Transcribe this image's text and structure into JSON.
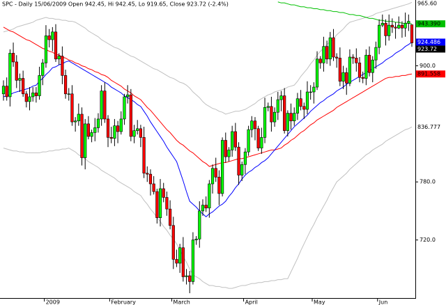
{
  "chart_data": {
    "type": "candlestick",
    "title": "SPC - Daily 15/06/2009 Open 942.45, Hi 942.45, Lo 919.65, Close 923.72 (-2.4%)",
    "categories": [
      null,
      null,
      null,
      null,
      null,
      null,
      null,
      null,
      null,
      null,
      null,
      null,
      null,
      "2009",
      null,
      null,
      null,
      null,
      null,
      null,
      null,
      null,
      null,
      null,
      null,
      null,
      null,
      null,
      null,
      null,
      null,
      null,
      null,
      "February",
      null,
      null,
      null,
      null,
      null,
      null,
      null,
      null,
      null,
      null,
      null,
      null,
      null,
      null,
      null,
      null,
      null,
      null,
      "March",
      null,
      null,
      null,
      null,
      null,
      null,
      null,
      null,
      null,
      null,
      null,
      null,
      null,
      null,
      null,
      null,
      null,
      null,
      null,
      null,
      null,
      "April",
      null,
      null,
      null,
      null,
      null,
      null,
      null,
      null,
      null,
      null,
      null,
      null,
      null,
      null,
      null,
      null,
      null,
      null,
      null,
      null,
      "May",
      null,
      null,
      null,
      null,
      null,
      null,
      null,
      null,
      null,
      null,
      null,
      null,
      null,
      null,
      null,
      null,
      null,
      null,
      null,
      "Jun",
      null,
      null,
      null,
      null,
      null,
      null,
      null,
      null,
      null,
      null
    ],
    "open": [
      871,
      879,
      868,
      913,
      904,
      885,
      887,
      871,
      863,
      868,
      872,
      869,
      890,
      903,
      931,
      927,
      935,
      907,
      910,
      890,
      871,
      871,
      842,
      843,
      850,
      805,
      840,
      827,
      831,
      836,
      845,
      874,
      845,
      826,
      825,
      838,
      832,
      845,
      868,
      870,
      827,
      833,
      835,
      826,
      789,
      788,
      778,
      770,
      743,
      773,
      764,
      752,
      735,
      700,
      696,
      712,
      682,
      683,
      677,
      720,
      721,
      750,
      756,
      753,
      778,
      794,
      785,
      768,
      823,
      806,
      813,
      832,
      816,
      787,
      798,
      811,
      834,
      843,
      835,
      815,
      826,
      857,
      858,
      842,
      852,
      865,
      869,
      833,
      851,
      843,
      851,
      866,
      858,
      855,
      873,
      873,
      878,
      907,
      903,
      920,
      907,
      929,
      909,
      908,
      884,
      893,
      882,
      909,
      908,
      903,
      888,
      887,
      911,
      893,
      906,
      919,
      942,
      944,
      931,
      942,
      940,
      939,
      942,
      939,
      944,
      942.45
    ],
    "high": [
      885,
      888,
      917,
      924,
      911,
      892,
      895,
      874,
      878,
      878,
      878,
      899,
      907,
      942,
      938,
      940,
      943,
      913,
      920,
      896,
      877,
      880,
      847,
      861,
      857,
      845,
      848,
      834,
      846,
      851,
      880,
      883,
      849,
      837,
      845,
      843,
      853,
      871,
      880,
      876,
      839,
      844,
      839,
      837,
      796,
      793,
      786,
      773,
      783,
      779,
      770,
      761,
      744,
      710,
      716,
      723,
      690,
      688,
      728,
      724,
      760,
      762,
      765,
      782,
      798,
      805,
      792,
      826,
      831,
      816,
      838,
      841,
      821,
      801,
      815,
      838,
      848,
      847,
      838,
      836,
      867,
      862,
      868,
      857,
      873,
      874,
      877,
      854,
      861,
      857,
      872,
      875,
      862,
      884,
      880,
      883,
      915,
      910,
      930,
      926,
      935,
      938,
      913,
      919,
      900,
      898,
      917,
      912,
      918,
      909,
      894,
      917,
      920,
      910,
      925,
      948,
      953,
      948,
      953,
      949,
      945,
      951,
      946,
      955,
      953,
      942.45
    ],
    "low": [
      864,
      864,
      858,
      899,
      877,
      873,
      868,
      857,
      854,
      863,
      862,
      865,
      880,
      898,
      919,
      915,
      904,
      901,
      881,
      866,
      864,
      838,
      832,
      838,
      797,
      793,
      824,
      821,
      822,
      831,
      838,
      841,
      816,
      820,
      817,
      820,
      829,
      839,
      861,
      822,
      820,
      829,
      816,
      784,
      780,
      766,
      767,
      737,
      734,
      759,
      745,
      731,
      690,
      692,
      686,
      677,
      674,
      665,
      674,
      715,
      712,
      745,
      749,
      743,
      768,
      780,
      756,
      765,
      800,
      801,
      806,
      812,
      777,
      781,
      788,
      807,
      826,
      823,
      812,
      809,
      820,
      853,
      832,
      837,
      844,
      853,
      830,
      827,
      834,
      838,
      844,
      854,
      845,
      850,
      865,
      861,
      875,
      897,
      894,
      902,
      900,
      905,
      898,
      879,
      876,
      870,
      879,
      902,
      894,
      883,
      882,
      880,
      889,
      883,
      897,
      912,
      940,
      921,
      926,
      934,
      928,
      938,
      929,
      930,
      936,
      919.65
    ],
    "close": [
      879,
      868,
      913,
      904,
      885,
      887,
      871,
      863,
      868,
      872,
      869,
      890,
      903,
      931,
      927,
      935,
      907,
      910,
      890,
      871,
      871,
      842,
      843,
      850,
      805,
      840,
      827,
      831,
      836,
      845,
      874,
      845,
      826,
      825,
      838,
      832,
      845,
      868,
      870,
      827,
      833,
      835,
      826,
      789,
      788,
      778,
      770,
      743,
      773,
      764,
      752,
      735,
      700,
      696,
      712,
      682,
      683,
      677,
      720,
      721,
      750,
      756,
      753,
      778,
      794,
      785,
      768,
      823,
      806,
      813,
      832,
      816,
      787,
      798,
      811,
      834,
      843,
      835,
      815,
      826,
      857,
      858,
      842,
      852,
      865,
      869,
      833,
      851,
      843,
      851,
      866,
      858,
      855,
      873,
      873,
      878,
      907,
      903,
      920,
      907,
      929,
      909,
      908,
      884,
      893,
      882,
      909,
      908,
      903,
      888,
      887,
      911,
      893,
      906,
      919,
      942,
      944,
      931,
      942,
      940,
      939,
      942,
      939,
      944,
      946,
      923.72
    ],
    "up_color": "#00ff00",
    "down_color": "#ff0000",
    "close_tag_color": "#000000",
    "ylim": [
      660,
      968
    ],
    "yticks": [
      {
        "value": 720,
        "label": "720.0"
      },
      {
        "value": 780,
        "label": "780.0"
      },
      {
        "value": 900,
        "label": "900.0"
      }
    ],
    "overlays": [
      {
        "color": "#c0c0c0",
        "tag_color": "#ffffff",
        "last_label": "965.60",
        "values": [
          935,
          936,
          937,
          938,
          940,
          941,
          942,
          943,
          944,
          945,
          947,
          948,
          949,
          950,
          949,
          949,
          948,
          948,
          947,
          947,
          946,
          946,
          945,
          943,
          941,
          939,
          936,
          934,
          932,
          930,
          927,
          925,
          923,
          921,
          919,
          918,
          916,
          914,
          912,
          910,
          909,
          907,
          905,
          903,
          901,
          899,
          897,
          896,
          894,
          892,
          890,
          888,
          887,
          885,
          883,
          882,
          880,
          877,
          873,
          870,
          867,
          863,
          860,
          858,
          856,
          855,
          853,
          852,
          850,
          851,
          852,
          853,
          853,
          854,
          855,
          857,
          859,
          861,
          864,
          866,
          868,
          870,
          871,
          873,
          874,
          875,
          876,
          878,
          879,
          880,
          884,
          889,
          893,
          897,
          902,
          906,
          911,
          915,
          918,
          922,
          925,
          928,
          932,
          935,
          938,
          942,
          945,
          946,
          947,
          948,
          949,
          950,
          951,
          952,
          954,
          955,
          956,
          957,
          958,
          959,
          960,
          961,
          962,
          963,
          964,
          965.6
        ]
      },
      {
        "color": "#c0c0c0",
        "tag_color": "#ffffff",
        "values": [
          815,
          814,
          813,
          812,
          812,
          811,
          811,
          810,
          810,
          810,
          810,
          810,
          811,
          811,
          812,
          812,
          813,
          813,
          814,
          814,
          815,
          813,
          811,
          808,
          806,
          804,
          801,
          799,
          797,
          795,
          792,
          790,
          788,
          786,
          784,
          781,
          779,
          777,
          775,
          773,
          770,
          768,
          766,
          761,
          757,
          752,
          748,
          743,
          739,
          734,
          730,
          725,
          721,
          716,
          710,
          703,
          697,
          690,
          684,
          682,
          680,
          677,
          675,
          673,
          673,
          672,
          672,
          671,
          671,
          670,
          670,
          671,
          672,
          673,
          673,
          674,
          675,
          675,
          676,
          676,
          677,
          677,
          678,
          678,
          679,
          679,
          680,
          680,
          687,
          694,
          701,
          709,
          716,
          723,
          730,
          736,
          743,
          749,
          755,
          761,
          768,
          774,
          780,
          783,
          786,
          789,
          793,
          796,
          799,
          802,
          805,
          808,
          810,
          813,
          815,
          817,
          819,
          822,
          824,
          826,
          828,
          830,
          832,
          834,
          835,
          836.777
        ]
      },
      {
        "color": "#ff0000",
        "tag_color": "#ff0000",
        "values": [
          940,
          938,
          936,
          935,
          933,
          931,
          929,
          927,
          926,
          924,
          922,
          920,
          918,
          917,
          915,
          914,
          912,
          911,
          909,
          908,
          906,
          905,
          903,
          902,
          900,
          899,
          897,
          896,
          894,
          893,
          891,
          890,
          888,
          885,
          883,
          881,
          879,
          876,
          874,
          872,
          869,
          867,
          865,
          861,
          857,
          854,
          850,
          846,
          842,
          838,
          834,
          831,
          827,
          823,
          820,
          818,
          815,
          812,
          810,
          807,
          804,
          801,
          799,
          796,
          797,
          798,
          799,
          800,
          800,
          801,
          802,
          803,
          804,
          804,
          805,
          806,
          807,
          808,
          809,
          810,
          811,
          812,
          813,
          813,
          814,
          815,
          818,
          820,
          823,
          825,
          828,
          831,
          833,
          836,
          839,
          841,
          844,
          846,
          848,
          850,
          852,
          854,
          857,
          859,
          861,
          863,
          865,
          867,
          869,
          871,
          873,
          875,
          877,
          879,
          881,
          883,
          885,
          887,
          888,
          888,
          889,
          889,
          890,
          890,
          891,
          891.558
        ]
      },
      {
        "color": "#00c000",
        "tag_color": "#00c000",
        "last_label": "943.390",
        "values": [
          null,
          null,
          null,
          null,
          null,
          null,
          null,
          null,
          null,
          null,
          null,
          null,
          null,
          null,
          null,
          null,
          null,
          null,
          null,
          null,
          null,
          null,
          null,
          null,
          null,
          null,
          null,
          null,
          null,
          null,
          null,
          null,
          null,
          null,
          null,
          null,
          null,
          null,
          null,
          null,
          null,
          null,
          null,
          null,
          null,
          null,
          null,
          null,
          null,
          null,
          null,
          null,
          null,
          null,
          null,
          null,
          null,
          null,
          null,
          null,
          null,
          null,
          null,
          null,
          null,
          null,
          null,
          null,
          null,
          null,
          null,
          null,
          null,
          null,
          null,
          null,
          null,
          null,
          null,
          null,
          null,
          null,
          null,
          null,
          966,
          965,
          965,
          964,
          963,
          963,
          962,
          961,
          961,
          960,
          960,
          959,
          959,
          958,
          958,
          957,
          957,
          956,
          956,
          955,
          955,
          954,
          953,
          953,
          952,
          952,
          951,
          950,
          949,
          949,
          948,
          947,
          947,
          946,
          946,
          946,
          945,
          945,
          944,
          944,
          944,
          943.39
        ]
      },
      {
        "color": "#0000ff",
        "tag_color": "#0000ff",
        "values": [
          868,
          869,
          870,
          872,
          873,
          874,
          875,
          876,
          877,
          879,
          880,
          884,
          887,
          891,
          894,
          898,
          899,
          901,
          902,
          904,
          905,
          903,
          901,
          899,
          897,
          895,
          893,
          891,
          889,
          887,
          885,
          883,
          881,
          878,
          876,
          874,
          872,
          869,
          867,
          865,
          863,
          860,
          858,
          853,
          848,
          842,
          837,
          832,
          827,
          822,
          816,
          811,
          806,
          801,
          791,
          781,
          770,
          760,
          757,
          754,
          750,
          747,
          744,
          747,
          749,
          752,
          755,
          757,
          760,
          765,
          769,
          774,
          778,
          783,
          787,
          790,
          792,
          795,
          797,
          800,
          802,
          805,
          809,
          813,
          817,
          821,
          825,
          829,
          833,
          837,
          840,
          843,
          846,
          849,
          853,
          856,
          859,
          862,
          864,
          867,
          869,
          871,
          874,
          876,
          878,
          881,
          883,
          885,
          887,
          889,
          891,
          893,
          895,
          897,
          899,
          901,
          903,
          906,
          908,
          910,
          913,
          915,
          917,
          920,
          922,
          924.486
        ]
      }
    ]
  }
}
